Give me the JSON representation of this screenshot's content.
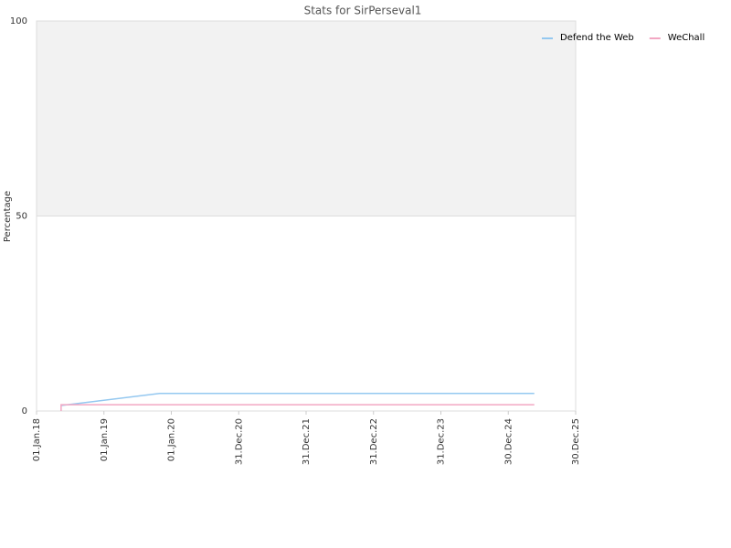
{
  "chart_data": {
    "type": "line",
    "title": "Stats for SirPerseval1",
    "y_label": "Percentage",
    "series": [
      {
        "name": "Defend the Web",
        "color": "#94c8f0",
        "x": [
          "2018-05-14",
          "2019-10-30",
          "2025-05-20"
        ],
        "values": [
          1.4,
          4.5,
          4.5
        ]
      },
      {
        "name": "WeChall",
        "color": "#f2a7c3",
        "x": [
          "2018-05-14",
          "2018-05-14",
          "2025-05-20"
        ],
        "values": [
          0,
          1.6,
          1.6
        ]
      }
    ],
    "xlim": [
      "2018-01-01",
      "2025-12-30"
    ],
    "xticks": [
      {
        "value": "2018-01-01",
        "label": "01.Jan.18"
      },
      {
        "value": "2019-01-01",
        "label": "01.Jan.19"
      },
      {
        "value": "2020-01-01",
        "label": "01.Jan.20"
      },
      {
        "value": "2020-12-31",
        "label": "31.Dec.20"
      },
      {
        "value": "2021-12-31",
        "label": "31.Dec.21"
      },
      {
        "value": "2022-12-31",
        "label": "31.Dec.22"
      },
      {
        "value": "2023-12-31",
        "label": "31.Dec.23"
      },
      {
        "value": "2024-12-30",
        "label": "30.Dec.24"
      },
      {
        "value": "2025-12-30",
        "label": "30.Dec.25"
      }
    ],
    "ylim": [
      0,
      100
    ],
    "yticks": [
      0,
      50,
      100
    ],
    "bands": [
      {
        "from": 50,
        "to": 100,
        "color": "#f2f2f2"
      }
    ],
    "grid": true,
    "legend": "top-right"
  }
}
